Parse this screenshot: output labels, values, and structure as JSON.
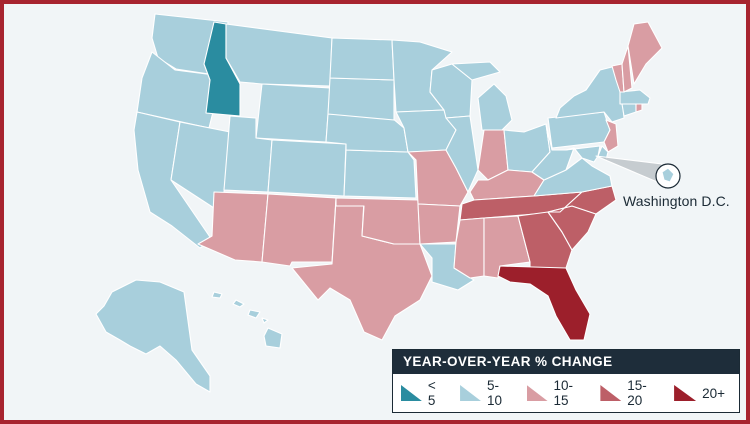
{
  "colors": {
    "lt5": "#2a8ca0",
    "r5_10": "#a8cfdc",
    "r10_15": "#d99da3",
    "r15_20": "#bd5f67",
    "r20plus": "#9c1f2b",
    "background": "#f1f5f7",
    "border": "#a7242f"
  },
  "map": {
    "dc_label": "Washington D.C."
  },
  "legend": {
    "title": "YEAR-OVER-YEAR % CHANGE",
    "items": [
      {
        "label": "< 5",
        "color_key": "lt5"
      },
      {
        "label": "5-10",
        "color_key": "r5_10"
      },
      {
        "label": "10-15",
        "color_key": "r10_15"
      },
      {
        "label": "15-20",
        "color_key": "r15_20"
      },
      {
        "label": "20+",
        "color_key": "r20plus"
      }
    ]
  },
  "states": {
    "WA": "5-10",
    "OR": "5-10",
    "CA": "5-10",
    "ID": "< 5",
    "NV": "5-10",
    "MT": "5-10",
    "WY": "5-10",
    "UT": "5-10",
    "CO": "5-10",
    "AZ": "10-15",
    "NM": "10-15",
    "TX": "10-15",
    "OK": "10-15",
    "KS": "5-10",
    "NE": "5-10",
    "SD": "5-10",
    "ND": "5-10",
    "MN": "5-10",
    "IA": "5-10",
    "MO": "10-15",
    "AR": "10-15",
    "LA": "5-10",
    "WI": "5-10",
    "IL": "5-10",
    "MI": "5-10",
    "IN": "10-15",
    "OH": "5-10",
    "KY": "10-15",
    "TN": "15-20",
    "MS": "10-15",
    "AL": "10-15",
    "GA": "15-20",
    "FL": "20+",
    "SC": "15-20",
    "NC": "15-20",
    "VA": "5-10",
    "WV": "5-10",
    "PA": "5-10",
    "NY": "5-10",
    "NJ": "10-15",
    "DE": "5-10",
    "MD": "5-10",
    "DC": "5-10",
    "CT": "5-10",
    "RI": "10-15",
    "MA": "5-10",
    "VT": "10-15",
    "NH": "10-15",
    "ME": "10-15",
    "AK": "5-10",
    "HI": "5-10"
  }
}
